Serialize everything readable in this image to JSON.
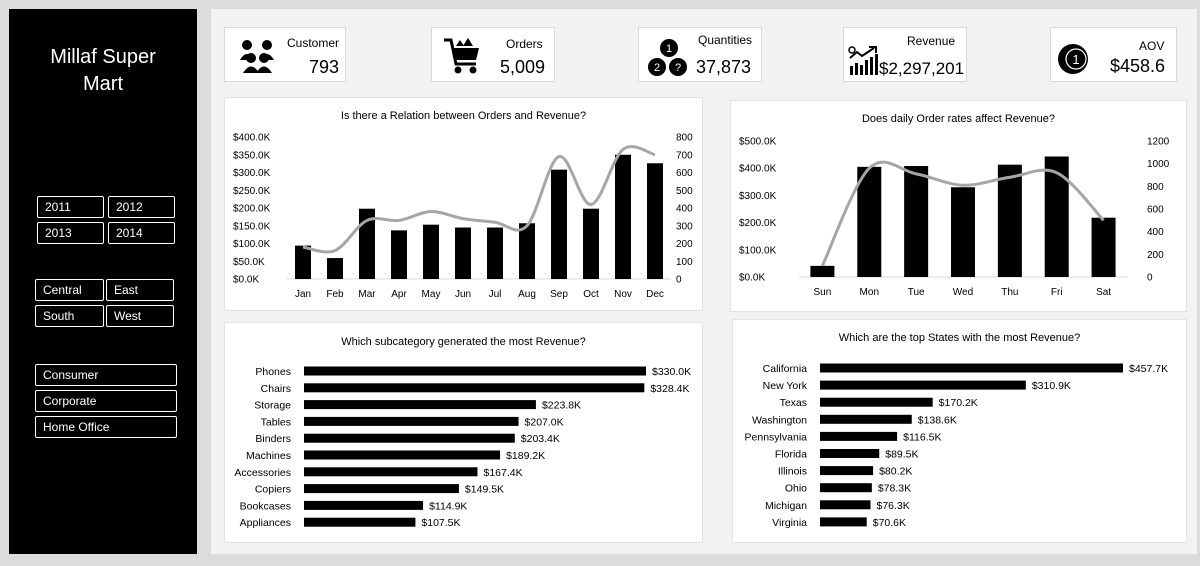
{
  "sidebar": {
    "title_line1": "Millaf Super",
    "title_line2": "Mart",
    "years": [
      "2011",
      "2012",
      "2013",
      "2014"
    ],
    "regions": [
      "Central",
      "East",
      "South",
      "West"
    ],
    "segments": [
      "Consumer",
      "Corporate",
      "Home Office"
    ]
  },
  "kpis": {
    "customer": {
      "label": "Customer",
      "value": "793",
      "icon": "people-icon"
    },
    "orders": {
      "label": "Orders",
      "value": "5,009",
      "icon": "cart-icon"
    },
    "quantities": {
      "label": "Quantities",
      "value": "37,873",
      "icon": "numbered-circles-icon"
    },
    "revenue": {
      "label": "Revenue",
      "value": "$2,297,201",
      "icon": "growth-chart-icon"
    },
    "aov": {
      "label": "AOV",
      "value": "$458.6",
      "icon": "coin-one-icon"
    }
  },
  "chart_data": [
    {
      "type": "bar",
      "title": "Is there a Relation between Orders and Revenue?",
      "categories": [
        "Jan",
        "Feb",
        "Mar",
        "Apr",
        "May",
        "Jun",
        "Jul",
        "Aug",
        "Sep",
        "Oct",
        "Nov",
        "Dec"
      ],
      "series": [
        {
          "kind": "bar",
          "axis": "left",
          "values": [
            94,
            59,
            198,
            137,
            153,
            145,
            145,
            157,
            308,
            198,
            350,
            326
          ]
        },
        {
          "kind": "line",
          "axis": "right",
          "values": [
            180,
            160,
            330,
            330,
            380,
            340,
            320,
            300,
            690,
            420,
            730,
            700
          ]
        }
      ],
      "y_left": {
        "ticks": [
          "$0.0K",
          "$50.0K",
          "$100.0K",
          "$150.0K",
          "$200.0K",
          "$250.0K",
          "$300.0K",
          "$350.0K",
          "$400.0K"
        ],
        "lim": [
          0,
          400
        ]
      },
      "y_right": {
        "ticks": [
          "0",
          "100",
          "200",
          "300",
          "400",
          "500",
          "600",
          "700",
          "800"
        ],
        "lim": [
          0,
          800
        ]
      },
      "colors": {
        "bar": "#000000",
        "line": "#a6a6a6"
      }
    },
    {
      "type": "bar",
      "title": "Does daily Order rates affect Revenue?",
      "categories": [
        "Sun",
        "Mon",
        "Tue",
        "Wed",
        "Thu",
        "Fri",
        "Sat"
      ],
      "series": [
        {
          "kind": "bar",
          "axis": "left",
          "values": [
            41,
            405,
            408,
            330,
            413,
            443,
            218
          ]
        },
        {
          "kind": "line",
          "axis": "right",
          "values": [
            100,
            960,
            910,
            810,
            880,
            920,
            500
          ]
        }
      ],
      "y_left": {
        "ticks": [
          "$0.0K",
          "$100.0K",
          "$200.0K",
          "$300.0K",
          "$400.0K",
          "$500.0K"
        ],
        "lim": [
          0,
          500
        ]
      },
      "y_right": {
        "ticks": [
          "0",
          "200",
          "400",
          "600",
          "800",
          "1000",
          "1200"
        ],
        "lim": [
          0,
          1200
        ]
      },
      "colors": {
        "bar": "#000000",
        "line": "#a6a6a6"
      }
    },
    {
      "type": "bar",
      "orientation": "horizontal",
      "title": "Which subcategory generated the most Revenue?",
      "categories": [
        "Phones",
        "Chairs",
        "Storage",
        "Tables",
        "Binders",
        "Machines",
        "Accessories",
        "Copiers",
        "Bookcases",
        "Appliances"
      ],
      "values": [
        330.0,
        328.4,
        223.8,
        207.0,
        203.4,
        189.2,
        167.4,
        149.5,
        114.9,
        107.5
      ],
      "labels": [
        "$330.0K",
        "$328.4K",
        "$223.8K",
        "$207.0K",
        "$203.4K",
        "$189.2K",
        "$167.4K",
        "$149.5K",
        "$114.9K",
        "$107.5K"
      ]
    },
    {
      "type": "bar",
      "orientation": "horizontal",
      "title": "Which are the top States with  the most Revenue?",
      "categories": [
        "California",
        "New York",
        "Texas",
        "Washington",
        "Pennsylvania",
        "Florida",
        "Illinois",
        "Ohio",
        "Michigan",
        "Virginia"
      ],
      "values": [
        457.7,
        310.9,
        170.2,
        138.6,
        116.5,
        89.5,
        80.2,
        78.3,
        76.3,
        70.6
      ],
      "labels": [
        "$457.7K",
        "$310.9K",
        "$170.2K",
        "$138.6K",
        "$116.5K",
        "$89.5K",
        "$80.2K",
        "$78.3K",
        "$76.3K",
        "$70.6K"
      ]
    }
  ]
}
